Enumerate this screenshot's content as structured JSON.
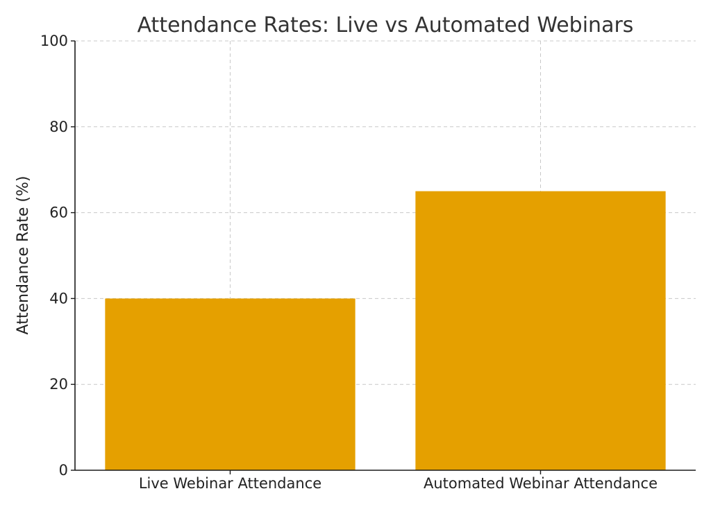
{
  "chart_data": {
    "type": "bar",
    "title": "Attendance Rates: Live vs Automated Webinars",
    "xlabel": "",
    "ylabel": "Attendance Rate (%)",
    "categories": [
      "Live Webinar Attendance",
      "Automated Webinar Attendance"
    ],
    "values": [
      40,
      65
    ],
    "ylim": [
      0,
      100
    ],
    "yticks": [
      0,
      20,
      40,
      60,
      80,
      100
    ],
    "bar_color": "#E5A000",
    "grid": true,
    "legend": "none"
  }
}
